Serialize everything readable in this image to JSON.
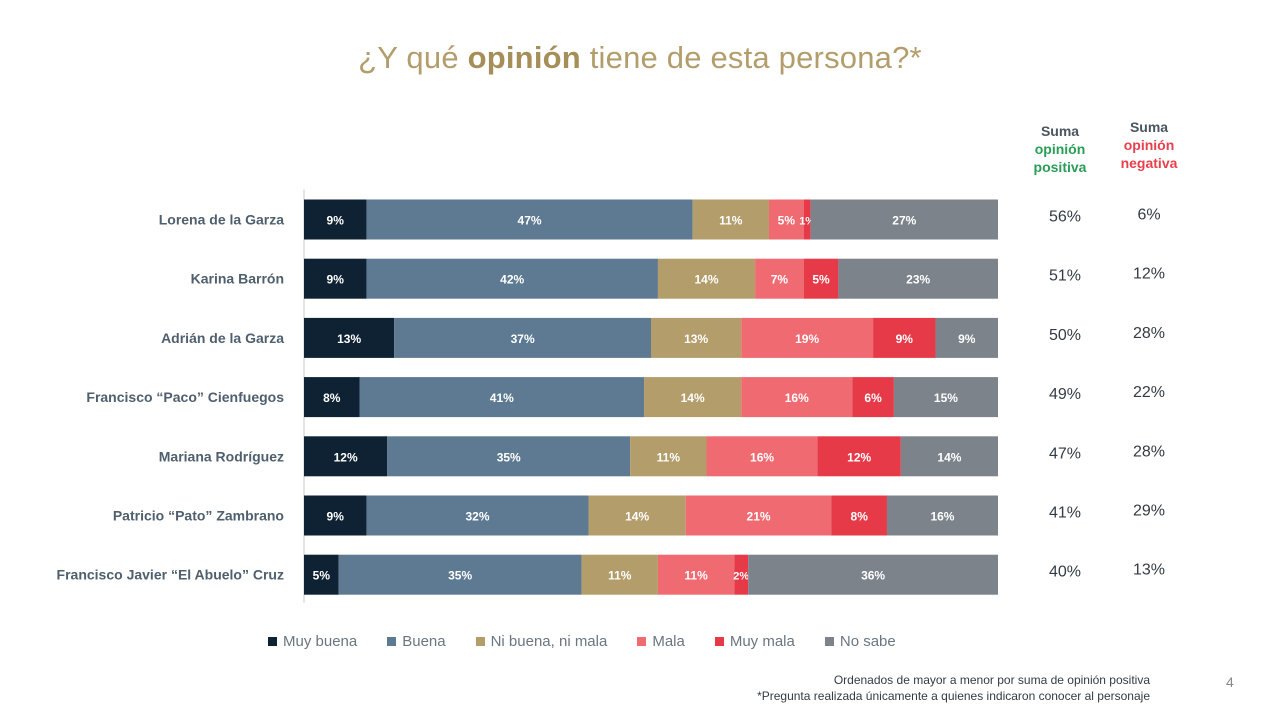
{
  "title": {
    "prefix": "¿Y qué",
    "emph": "opinión",
    "suffix": "tiene de esta persona?*"
  },
  "columns": {
    "positive": {
      "l1": "Suma",
      "l2": "opinión",
      "l3": "positiva"
    },
    "negative": {
      "l1": "Suma",
      "l2": "opinión",
      "l3": "negativa"
    }
  },
  "chart_data": {
    "type": "bar",
    "orientation": "horizontal-stacked-100",
    "categories": [
      "Lorena de la Garza",
      "Karina Barrón",
      "Adrián de la Garza",
      "Francisco “Paco” Cienfuegos",
      "Mariana Rodríguez",
      "Patricio “Pato” Zambrano",
      "Francisco Javier “El Abuelo” Cruz"
    ],
    "series": [
      {
        "name": "Muy buena",
        "color": "#0f2233",
        "values": [
          9,
          9,
          13,
          8,
          12,
          9,
          5
        ]
      },
      {
        "name": "Buena",
        "color": "#5d7a92",
        "values": [
          47,
          42,
          37,
          41,
          35,
          32,
          35
        ]
      },
      {
        "name": "Ni buena, ni mala",
        "color": "#b39d6b",
        "values": [
          11,
          14,
          13,
          14,
          11,
          14,
          11
        ]
      },
      {
        "name": "Mala",
        "color": "#f06a72",
        "values": [
          5,
          7,
          19,
          16,
          16,
          21,
          11
        ]
      },
      {
        "name": "Muy mala",
        "color": "#e63a48",
        "values": [
          1,
          5,
          9,
          6,
          12,
          8,
          2
        ]
      },
      {
        "name": "No sabe",
        "color": "#7c838b",
        "values": [
          27,
          23,
          9,
          15,
          14,
          16,
          36
        ]
      }
    ],
    "suma_positiva": [
      "56%",
      "51%",
      "50%",
      "49%",
      "47%",
      "41%",
      "40%"
    ],
    "suma_negativa": [
      "6%",
      "12%",
      "28%",
      "22%",
      "28%",
      "29%",
      "13%"
    ],
    "legend_position": "bottom"
  },
  "footnote": {
    "line1": "Ordenados de mayor a menor por suma de opinión positiva",
    "line2": "*Pregunta realizada únicamente a quienes indicaron conocer al personaje"
  },
  "page_number": "4"
}
